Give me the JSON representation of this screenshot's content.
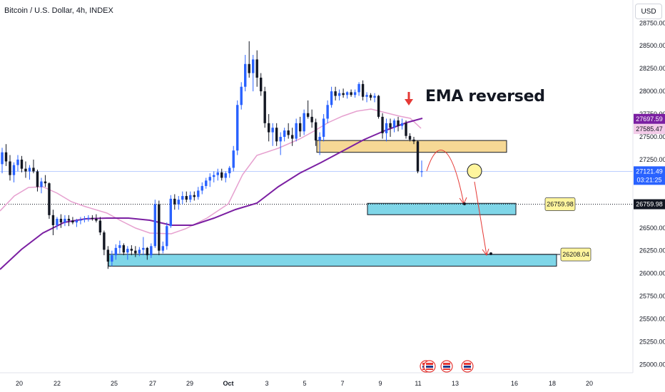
{
  "header": {
    "title": "Bitcoin / U.S. Dollar, 4h, INDEX"
  },
  "currency": "USD",
  "annotation": "EMA reversed",
  "chart_data": {
    "type": "candlestick",
    "title": "Bitcoin / U.S. Dollar, 4h, INDEX",
    "y_axis": {
      "ticks": [
        "28750.00",
        "28500.00",
        "28250.00",
        "28000.00",
        "27750.00",
        "27500.00",
        "27250.00",
        "27000.00",
        "26750.00",
        "26500.00",
        "26250.00",
        "26000.00",
        "25750.00",
        "25500.00",
        "25250.00",
        "25000.00"
      ],
      "range": [
        24950,
        28950
      ]
    },
    "x_axis": {
      "ticks": [
        "20",
        "22",
        "25",
        "27",
        "29",
        "Oct",
        "3",
        "5",
        "7",
        "9",
        "11",
        "13",
        "16",
        "18",
        "20"
      ]
    },
    "price_labels": [
      {
        "value": "27697.59",
        "color": "#7b1fa2",
        "text_color": "#ffffff"
      },
      {
        "value": "27585.47",
        "color": "#f3cbe8",
        "text_color": "#131722"
      },
      {
        "value": "27121.49",
        "color": "#2962ff",
        "text_color": "#ffffff",
        "countdown": "03:21:25"
      },
      {
        "value": "26759.98",
        "color": "#131722",
        "text_color": "#ffffff"
      }
    ],
    "level_labels": [
      "26759.98",
      "26208.04"
    ],
    "zones": [
      {
        "name": "resistance-zone",
        "from": 27330,
        "to": 27460,
        "color": "#f6d895"
      },
      {
        "name": "target-zone-1",
        "from": 26645,
        "to": 26770,
        "color": "#7fd6e8"
      },
      {
        "name": "target-zone-2",
        "from": 26080,
        "to": 26210,
        "color": "#7fd6e8"
      }
    ],
    "dashed_level": 26759.98,
    "series": [
      {
        "name": "",
        "color": "#7b1fa2",
        "kind": "ema-long"
      },
      {
        "name": "",
        "color": "#e6a0cf",
        "kind": "ema-short"
      }
    ],
    "candles": [
      [
        27200,
        27380,
        27100,
        27330
      ],
      [
        27330,
        27420,
        27180,
        27230
      ],
      [
        27230,
        27300,
        27020,
        27080
      ],
      [
        27080,
        27220,
        27000,
        27190
      ],
      [
        27190,
        27300,
        27120,
        27250
      ],
      [
        27250,
        27290,
        27110,
        27150
      ],
      [
        27150,
        27230,
        27050,
        27120
      ],
      [
        27120,
        27190,
        27030,
        27160
      ],
      [
        27160,
        27250,
        27100,
        27120
      ],
      [
        27120,
        27140,
        26900,
        26950
      ],
      [
        26950,
        27050,
        26880,
        27010
      ],
      [
        27010,
        27080,
        26950,
        26990
      ],
      [
        26990,
        27000,
        26600,
        26640
      ],
      [
        26640,
        26700,
        26420,
        26530
      ],
      [
        26530,
        26620,
        26480,
        26600
      ],
      [
        26600,
        26650,
        26500,
        26560
      ],
      [
        26560,
        26640,
        26520,
        26600
      ],
      [
        26600,
        26640,
        26520,
        26580
      ],
      [
        26580,
        26620,
        26540,
        26560
      ],
      [
        26560,
        26600,
        26510,
        26580
      ],
      [
        26580,
        26620,
        26540,
        26590
      ],
      [
        26590,
        26630,
        26560,
        26600
      ],
      [
        26600,
        26640,
        26570,
        26610
      ],
      [
        26610,
        26640,
        26580,
        26600
      ],
      [
        26600,
        26650,
        26560,
        26580
      ],
      [
        26580,
        26620,
        26420,
        26450
      ],
      [
        26450,
        26470,
        26200,
        26260
      ],
      [
        26260,
        26300,
        26050,
        26130
      ],
      [
        26130,
        26250,
        26080,
        26200
      ],
      [
        26200,
        26320,
        26150,
        26280
      ],
      [
        26280,
        26360,
        26220,
        26310
      ],
      [
        26310,
        26330,
        26200,
        26230
      ],
      [
        26230,
        26300,
        26150,
        26270
      ],
      [
        26270,
        26310,
        26200,
        26250
      ],
      [
        26250,
        26300,
        26180,
        26220
      ],
      [
        26220,
        26290,
        26190,
        26260
      ],
      [
        26260,
        26400,
        26200,
        26280
      ],
      [
        26280,
        26290,
        26150,
        26200
      ],
      [
        26200,
        26330,
        26170,
        26300
      ],
      [
        26300,
        26810,
        26280,
        26760
      ],
      [
        26760,
        26800,
        26200,
        26250
      ],
      [
        26250,
        26350,
        26220,
        26300
      ],
      [
        26300,
        26560,
        26260,
        26520
      ],
      [
        26520,
        26860,
        26500,
        26820
      ],
      [
        26820,
        26870,
        26700,
        26760
      ],
      [
        26760,
        26850,
        26700,
        26810
      ],
      [
        26810,
        26900,
        26760,
        26850
      ],
      [
        26850,
        26900,
        26780,
        26810
      ],
      [
        26810,
        26900,
        26780,
        26860
      ],
      [
        26860,
        26900,
        26800,
        26840
      ],
      [
        26840,
        26950,
        26810,
        26910
      ],
      [
        26910,
        27000,
        26870,
        26960
      ],
      [
        26960,
        27050,
        26930,
        27020
      ],
      [
        27020,
        27100,
        26950,
        27060
      ],
      [
        27060,
        27120,
        27000,
        27080
      ],
      [
        27080,
        27150,
        27020,
        27110
      ],
      [
        27110,
        27150,
        27020,
        27050
      ],
      [
        27050,
        27120,
        27000,
        27100
      ],
      [
        27100,
        27180,
        27050,
        27160
      ],
      [
        27160,
        27400,
        27120,
        27350
      ],
      [
        27350,
        27900,
        27300,
        27850
      ],
      [
        27850,
        28100,
        27800,
        28050
      ],
      [
        28050,
        28400,
        28000,
        28300
      ],
      [
        28300,
        28550,
        28150,
        28200
      ],
      [
        28200,
        28400,
        28000,
        28350
      ],
      [
        28350,
        28450,
        28050,
        28150
      ],
      [
        28150,
        28200,
        27950,
        28000
      ],
      [
        28000,
        28050,
        27600,
        27650
      ],
      [
        27650,
        27750,
        27450,
        27550
      ],
      [
        27550,
        27650,
        27400,
        27600
      ],
      [
        27600,
        27650,
        27400,
        27450
      ],
      [
        27450,
        27550,
        27300,
        27500
      ],
      [
        27500,
        27600,
        27450,
        27570
      ],
      [
        27570,
        27650,
        27480,
        27520
      ],
      [
        27520,
        27600,
        27400,
        27480
      ],
      [
        27480,
        27700,
        27450,
        27650
      ],
      [
        27650,
        27720,
        27500,
        27560
      ],
      [
        27560,
        27800,
        27520,
        27760
      ],
      [
        27760,
        27900,
        27700,
        27720
      ],
      [
        27720,
        27800,
        27600,
        27660
      ],
      [
        27660,
        27700,
        27400,
        27460
      ],
      [
        27460,
        27550,
        27300,
        27500
      ],
      [
        27500,
        27750,
        27450,
        27700
      ],
      [
        27700,
        27900,
        27650,
        27850
      ],
      [
        27850,
        28050,
        27820,
        28000
      ],
      [
        28000,
        28050,
        27900,
        27950
      ],
      [
        27950,
        28020,
        27900,
        27980
      ],
      [
        27980,
        28030,
        27930,
        27960
      ],
      [
        27960,
        28000,
        27920,
        27990
      ],
      [
        27990,
        28020,
        27940,
        27960
      ],
      [
        27960,
        28020,
        27930,
        27990
      ],
      [
        27990,
        28100,
        27950,
        28080
      ],
      [
        28080,
        28120,
        27900,
        27940
      ],
      [
        27940,
        27990,
        27880,
        27960
      ],
      [
        27960,
        27980,
        27900,
        27930
      ],
      [
        27930,
        27980,
        27880,
        27950
      ],
      [
        27950,
        27960,
        27700,
        27720
      ],
      [
        27720,
        27760,
        27480,
        27540
      ],
      [
        27540,
        27700,
        27450,
        27650
      ],
      [
        27650,
        27700,
        27500,
        27600
      ],
      [
        27600,
        27700,
        27550,
        27680
      ],
      [
        27680,
        27720,
        27560,
        27620
      ],
      [
        27620,
        27700,
        27580,
        27650
      ],
      [
        27650,
        27680,
        27480,
        27510
      ],
      [
        27510,
        27540,
        27450,
        27470
      ],
      [
        27470,
        27500,
        27420,
        27450
      ],
      [
        27450,
        27460,
        27100,
        27120
      ],
      [
        27120,
        27240,
        27060,
        27121.49
      ]
    ]
  },
  "event_icons": [
    "flag-icon",
    "flag-icon",
    "flag-icon",
    "flag-icon"
  ]
}
